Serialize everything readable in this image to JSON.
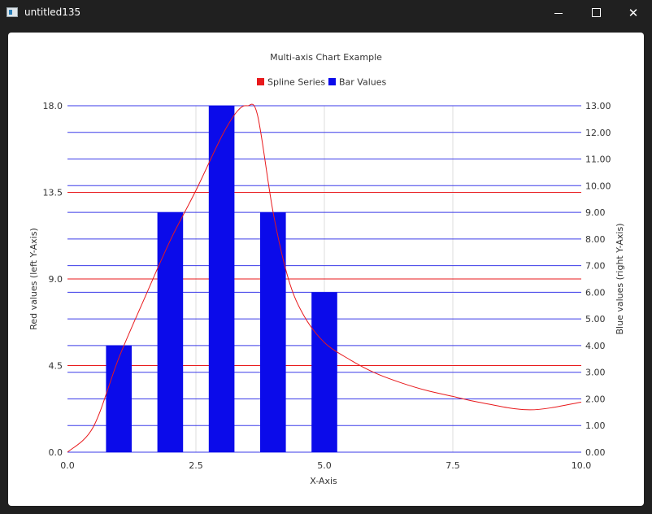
{
  "window": {
    "title": "untitled135",
    "close_glyph": "✕"
  },
  "colors": {
    "spline": "#e8191c",
    "bar": "#0b0bea",
    "left_grid": "#e8191c",
    "right_grid": "#3a3ae8",
    "vertical_grid": "#dcdcdc",
    "axis_text": "#333333"
  },
  "chart_data": {
    "type": "bar",
    "title": "Multi-axis Chart Example",
    "legend": {
      "placement": "top",
      "items": [
        {
          "label": "Spline Series",
          "color": "#e8191c"
        },
        {
          "label": "Bar Values",
          "color": "#0b0bea"
        }
      ]
    },
    "xlabel": "X-Axis",
    "ylabel_left": "Red values (left Y-Axis)",
    "ylabel_right": "Blue values (right Y-Axis)",
    "xlim": [
      0,
      10
    ],
    "ylim_left": [
      0,
      18
    ],
    "ylim_right": [
      0,
      13
    ],
    "x_ticks": [
      "0.0",
      "2.5",
      "5.0",
      "7.5",
      "10.0"
    ],
    "x_tick_values": [
      0,
      2.5,
      5,
      7.5,
      10
    ],
    "y_left_ticks": [
      "0.0",
      "4.5",
      "9.0",
      "13.5",
      "18.0"
    ],
    "y_left_tick_values": [
      0,
      4.5,
      9,
      13.5,
      18
    ],
    "y_right_ticks": [
      "0.00",
      "1.00",
      "2.00",
      "3.00",
      "4.00",
      "5.00",
      "6.00",
      "7.00",
      "8.00",
      "9.00",
      "10.00",
      "11.00",
      "12.00",
      "13.00"
    ],
    "y_right_tick_values": [
      0,
      1,
      2,
      3,
      4,
      5,
      6,
      7,
      8,
      9,
      10,
      11,
      12,
      13
    ],
    "series": [
      {
        "name": "Spline Series",
        "kind": "spline",
        "axis": "left",
        "x": [
          0,
          0.5,
          1,
          1.5,
          2,
          2.5,
          3,
          3.3,
          3.5,
          3.7,
          4,
          4.3,
          4.6,
          5,
          5.5,
          6,
          6.5,
          7,
          7.5,
          8,
          9,
          10
        ],
        "y": [
          0,
          1.3,
          4.9,
          8,
          11,
          13.6,
          16.4,
          17.7,
          18,
          17.5,
          12.5,
          9,
          7.1,
          5.7,
          4.8,
          4.1,
          3.6,
          3.2,
          2.9,
          2.6,
          2.2,
          2.6
        ]
      },
      {
        "name": "Bar Values",
        "kind": "bar",
        "axis": "right",
        "x": [
          1,
          2,
          3,
          4,
          5
        ],
        "values": [
          4,
          9,
          13,
          9,
          6
        ],
        "bar_width": 0.5
      }
    ]
  }
}
